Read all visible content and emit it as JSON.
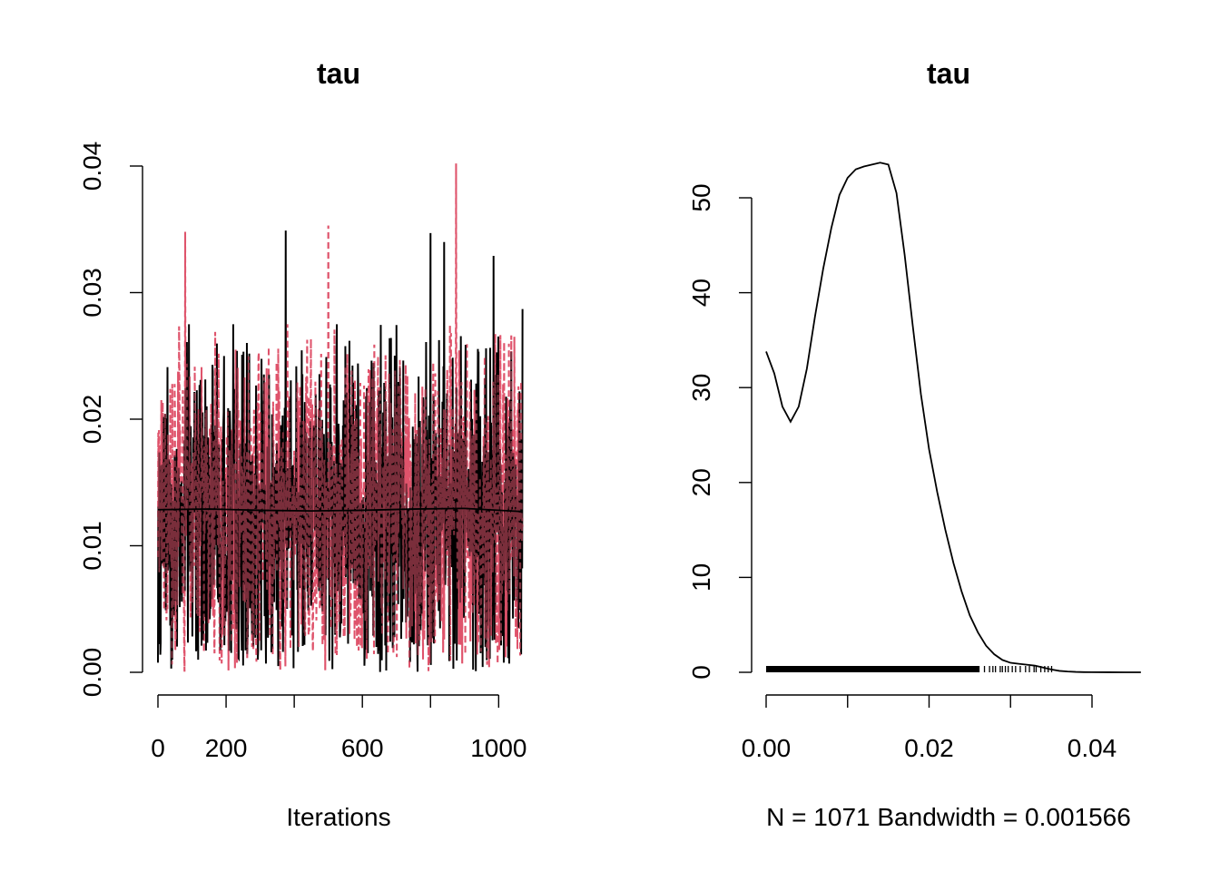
{
  "chart_data": [
    {
      "type": "line",
      "title": "tau",
      "xlabel": "Iterations",
      "ylabel": "",
      "xlim": [
        0,
        1071
      ],
      "ylim": [
        0,
        0.04
      ],
      "x_ticks": [
        0,
        200,
        600,
        1000
      ],
      "x_tick_labels": [
        "0",
        "200",
        "600",
        "1000"
      ],
      "y_ticks": [
        0,
        0.01,
        0.02,
        0.03,
        0.04
      ],
      "y_tick_labels": [
        "0.00",
        "0.01",
        "0.02",
        "0.03",
        "0.04"
      ],
      "series": [
        {
          "color": "#000000",
          "style": "solid",
          "n": 1071,
          "approx_range": [
            0.0,
            0.0349
          ],
          "peaks": [
            {
              "x": 375,
              "y": 0.0349
            },
            {
              "x": 800,
              "y": 0.0347
            },
            {
              "x": 840,
              "y": 0.034
            },
            {
              "x": 985,
              "y": 0.0329
            },
            {
              "x": 1070,
              "y": 0.0287
            }
          ]
        },
        {
          "color": "#DF536B",
          "style": "dashed",
          "n": 1071,
          "approx_range": [
            0.0,
            0.0402
          ],
          "peaks": [
            {
              "x": 80,
              "y": 0.0348
            },
            {
              "x": 500,
              "y": 0.0353
            },
            {
              "x": 875,
              "y": 0.0402
            }
          ]
        }
      ],
      "trend": {
        "color": "#000000",
        "x": [
          0,
          150,
          300,
          450,
          600,
          750,
          900,
          1071
        ],
        "y": [
          0.01285,
          0.0129,
          0.0128,
          0.01275,
          0.0128,
          0.0129,
          0.01295,
          0.0127
        ]
      }
    },
    {
      "type": "line",
      "title": "tau",
      "xlabel": "N = 1071   Bandwidth = 0.001566",
      "ylabel": "",
      "xlim": [
        0,
        0.046
      ],
      "ylim": [
        0,
        53.7
      ],
      "x_ticks": [
        0,
        0.02,
        0.04
      ],
      "x_tick_labels": [
        "0.00",
        "0.02",
        "0.04"
      ],
      "x_minor_ticks": [
        0,
        0.01,
        0.02,
        0.03,
        0.04
      ],
      "y_ticks": [
        0,
        10,
        20,
        30,
        40,
        50
      ],
      "y_tick_labels": [
        "0",
        "10",
        "20",
        "30",
        "40",
        "50"
      ],
      "density": {
        "x": [
          0.0,
          0.001,
          0.002,
          0.003,
          0.004,
          0.005,
          0.006,
          0.007,
          0.008,
          0.009,
          0.01,
          0.011,
          0.012,
          0.013,
          0.014,
          0.015,
          0.016,
          0.017,
          0.018,
          0.019,
          0.02,
          0.021,
          0.022,
          0.023,
          0.024,
          0.025,
          0.026,
          0.027,
          0.028,
          0.029,
          0.03,
          0.031,
          0.032,
          0.033,
          0.034,
          0.035,
          0.036,
          0.037,
          0.038,
          0.039,
          0.04,
          0.042,
          0.044,
          0.046
        ],
        "y": [
          33.8,
          31.5,
          28.0,
          26.4,
          28.0,
          32.0,
          37.5,
          42.5,
          46.8,
          50.3,
          52.1,
          53.0,
          53.3,
          53.5,
          53.7,
          53.5,
          50.5,
          44.0,
          36.5,
          29.3,
          23.5,
          19.0,
          15.0,
          11.5,
          8.5,
          6.0,
          4.2,
          2.8,
          1.9,
          1.3,
          1.0,
          0.9,
          0.8,
          0.7,
          0.5,
          0.3,
          0.15,
          0.08,
          0.04,
          0.02,
          0.01,
          0.005,
          0.002,
          0.0
        ]
      },
      "rug": {
        "from": 0.0,
        "to": 0.0352,
        "dense_until": 0.0262
      }
    }
  ]
}
